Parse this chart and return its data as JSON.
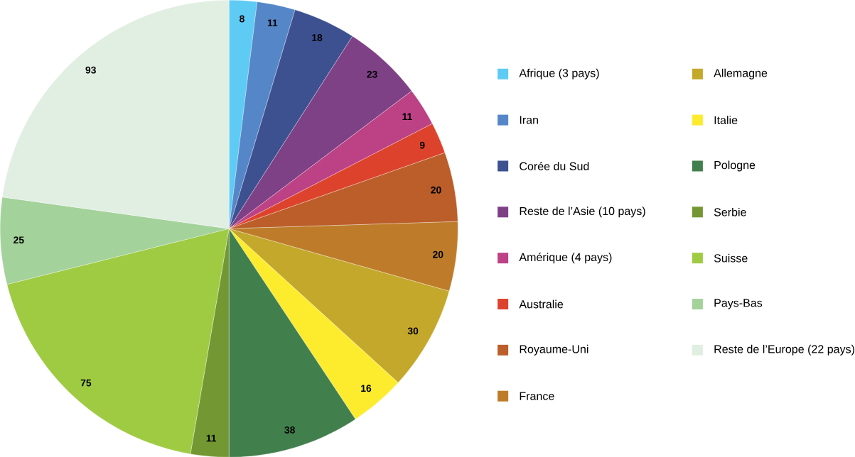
{
  "chart_data": {
    "type": "pie",
    "categories": [
      "Afrique (3 pays)",
      "Iran",
      "Corée du Sud",
      "Reste de l’Asie (10 pays)",
      "Amérique (4 pays)",
      "Australie",
      "Royaume-Uni",
      "France",
      "Allemagne",
      "Italie",
      "Pologne",
      "Serbie",
      "Suisse",
      "Pays-Bas",
      "Reste de l’Europe (22 pays)"
    ],
    "values": [
      8,
      11,
      18,
      23,
      11,
      9,
      20,
      20,
      30,
      16,
      38,
      11,
      75,
      25,
      93
    ],
    "colors": [
      "#5ecbf5",
      "#5587c8",
      "#3d5191",
      "#7f4186",
      "#bc4285",
      "#dd432c",
      "#bb5e29",
      "#be7c2a",
      "#c4a82b",
      "#fdec2e",
      "#417f4d",
      "#739833",
      "#9fcb43",
      "#a3d29b",
      "#e1efe3"
    ],
    "data_labels": true,
    "legend": "right"
  }
}
